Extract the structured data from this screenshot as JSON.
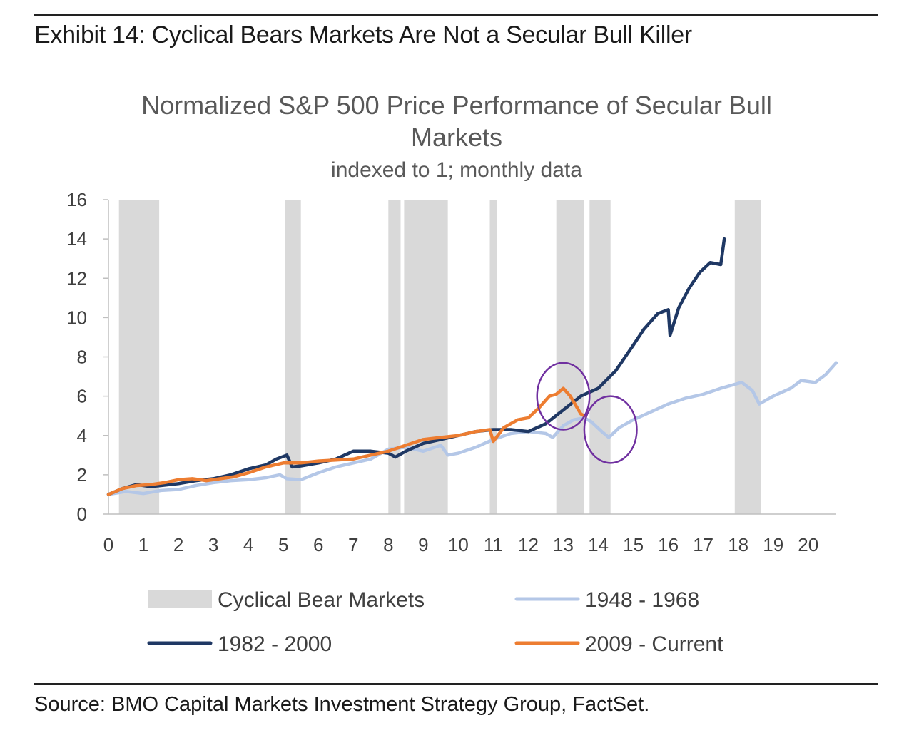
{
  "exhibit_title": "Exhibit 14: Cyclical Bears Markets Are Not a Secular Bull Killer",
  "source": "Source: BMO Capital Markets Investment Strategy Group, FactSet.",
  "chart_data": {
    "type": "line",
    "title_line1": "Normalized S&P 500 Price Performance of Secular Bull",
    "title_line2": "Markets",
    "subtitle": "indexed to 1; monthly data",
    "xlim": [
      0,
      20.8
    ],
    "ylim": [
      0,
      16
    ],
    "x_ticks": [
      0,
      1,
      2,
      3,
      4,
      5,
      6,
      7,
      8,
      9,
      10,
      11,
      12,
      13,
      14,
      15,
      16,
      17,
      18,
      19,
      20
    ],
    "x_tick_labels": [
      "0",
      "1",
      "2",
      "3",
      "4",
      "5",
      "6",
      "7",
      "8",
      "9",
      "10",
      "11",
      "12",
      "13",
      "14",
      "15",
      "16",
      "17",
      "18",
      "19",
      "20"
    ],
    "y_ticks": [
      0,
      2,
      4,
      6,
      8,
      10,
      12,
      14,
      16
    ],
    "y_tick_labels": [
      "0",
      "2",
      "4",
      "6",
      "8",
      "10",
      "12",
      "14",
      "16"
    ],
    "bear_markets": {
      "name": "Cyclical Bear Markets",
      "color": "#d9d9d9",
      "ranges": [
        [
          0.3,
          1.45
        ],
        [
          5.05,
          5.5
        ],
        [
          8.0,
          8.35
        ],
        [
          8.45,
          9.7
        ],
        [
          10.9,
          11.1
        ],
        [
          12.8,
          13.6
        ],
        [
          13.75,
          14.35
        ],
        [
          17.9,
          18.65
        ]
      ]
    },
    "series": [
      {
        "name": "1948 - 1968",
        "color": "#b4c7e7",
        "x": [
          0,
          0.5,
          1.0,
          1.5,
          2.0,
          2.5,
          3.0,
          3.5,
          4.0,
          4.5,
          4.9,
          5.1,
          5.5,
          6.0,
          6.5,
          7.0,
          7.5,
          8.0,
          8.5,
          9.0,
          9.5,
          9.7,
          10.0,
          10.5,
          11.0,
          11.5,
          12.0,
          12.5,
          12.7,
          13.0,
          13.3,
          13.6,
          13.8,
          14.1,
          14.3,
          14.6,
          15.0,
          15.5,
          16.0,
          16.5,
          17.0,
          17.5,
          17.9,
          18.1,
          18.4,
          18.6,
          19.0,
          19.5,
          19.8,
          20.2,
          20.5,
          20.8
        ],
        "y": [
          1.0,
          1.15,
          1.05,
          1.2,
          1.25,
          1.45,
          1.6,
          1.7,
          1.75,
          1.85,
          2.0,
          1.8,
          1.75,
          2.1,
          2.4,
          2.6,
          2.8,
          3.3,
          3.4,
          3.2,
          3.5,
          3.0,
          3.1,
          3.4,
          3.8,
          4.1,
          4.2,
          4.1,
          3.9,
          4.5,
          4.8,
          4.9,
          4.7,
          4.2,
          3.9,
          4.4,
          4.8,
          5.2,
          5.6,
          5.9,
          6.1,
          6.4,
          6.6,
          6.7,
          6.3,
          5.6,
          6.0,
          6.4,
          6.8,
          6.7,
          7.1,
          7.7
        ]
      },
      {
        "name": "1982 - 2000",
        "color": "#1f3864",
        "x": [
          0,
          0.4,
          0.8,
          1.2,
          1.5,
          2.0,
          2.5,
          3.0,
          3.5,
          4.0,
          4.5,
          4.8,
          5.1,
          5.25,
          5.5,
          6.0,
          6.5,
          7.0,
          7.5,
          8.0,
          8.2,
          8.5,
          9.0,
          9.5,
          10.0,
          10.5,
          11.0,
          11.5,
          12.0,
          12.5,
          13.0,
          13.5,
          14.0,
          14.5,
          15.0,
          15.3,
          15.7,
          16.0,
          16.05,
          16.3,
          16.6,
          16.9,
          17.2,
          17.5,
          17.6
        ],
        "y": [
          1.0,
          1.3,
          1.5,
          1.4,
          1.45,
          1.55,
          1.7,
          1.8,
          2.0,
          2.3,
          2.5,
          2.8,
          3.0,
          2.4,
          2.45,
          2.6,
          2.8,
          3.2,
          3.2,
          3.1,
          2.9,
          3.2,
          3.6,
          3.8,
          4.0,
          4.2,
          4.3,
          4.3,
          4.2,
          4.6,
          5.3,
          6.0,
          6.4,
          7.3,
          8.6,
          9.4,
          10.2,
          10.4,
          9.1,
          10.5,
          11.5,
          12.3,
          12.8,
          12.7,
          14.0
        ]
      },
      {
        "name": "2009 - Current",
        "color": "#ed7d31",
        "x": [
          0,
          0.4,
          0.8,
          1.2,
          1.6,
          2.0,
          2.4,
          2.8,
          3.2,
          3.6,
          4.0,
          4.5,
          5.0,
          5.5,
          6.0,
          6.5,
          7.0,
          7.5,
          8.0,
          8.5,
          9.0,
          9.5,
          10.0,
          10.5,
          10.9,
          11.0,
          11.3,
          11.7,
          12.0,
          12.3,
          12.6,
          12.8,
          13.0,
          13.2,
          13.5,
          13.6
        ],
        "y": [
          1.0,
          1.3,
          1.45,
          1.5,
          1.6,
          1.75,
          1.8,
          1.7,
          1.8,
          1.9,
          2.1,
          2.4,
          2.6,
          2.6,
          2.7,
          2.75,
          2.8,
          3.0,
          3.2,
          3.5,
          3.8,
          3.9,
          4.0,
          4.2,
          4.3,
          3.7,
          4.4,
          4.8,
          4.9,
          5.4,
          6.0,
          6.1,
          6.4,
          6.0,
          5.1,
          5.0
        ]
      }
    ],
    "highlight_circles": [
      {
        "cx": 13.0,
        "cy": 6.0,
        "rx": 0.75,
        "ry": 1.7,
        "color": "#7030a0"
      },
      {
        "cx": 14.35,
        "cy": 4.3,
        "rx": 0.75,
        "ry": 1.7,
        "color": "#7030a0"
      }
    ],
    "legend": [
      {
        "label": "Cyclical Bear Markets",
        "kind": "patch",
        "color": "#d9d9d9"
      },
      {
        "label": "1948 - 1968",
        "kind": "line",
        "color": "#b4c7e7"
      },
      {
        "label": "1982 - 2000",
        "kind": "line",
        "color": "#1f3864"
      },
      {
        "label": "2009 - Current",
        "kind": "line",
        "color": "#ed7d31"
      }
    ],
    "legend_position": "bottom",
    "grid": false
  }
}
